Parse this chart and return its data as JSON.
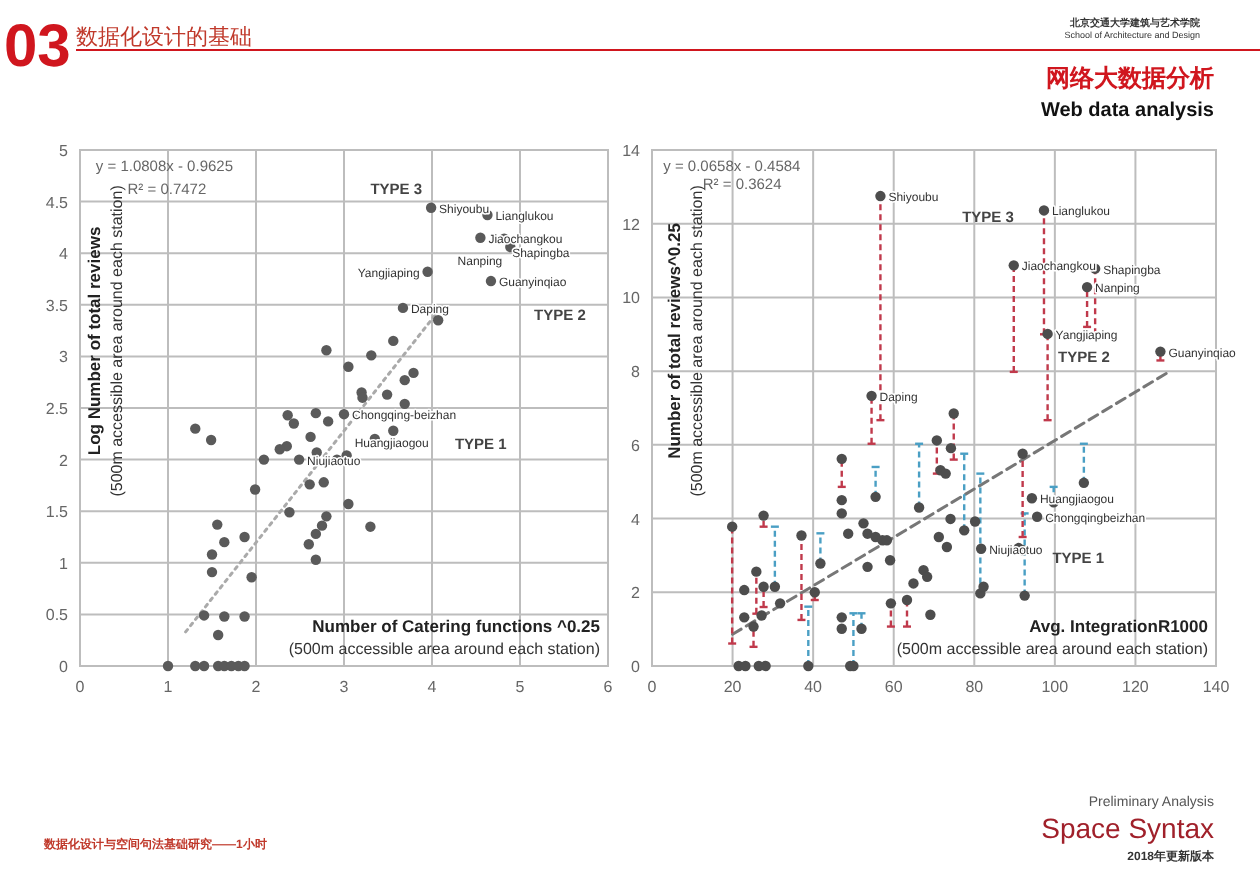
{
  "chart_data": [
    {
      "type": "scatter",
      "xlabel": "Number of Catering functions ^0.25\n(500m accessible area around each station)",
      "ylabel": "Log Number of total reviews\n(500m accessible area around each station)",
      "xlim": [
        0,
        6
      ],
      "ylim": [
        0,
        5
      ],
      "xticks": [
        0,
        1,
        2,
        3,
        4,
        5,
        6
      ],
      "yticks": [
        0,
        0.5,
        1,
        1.5,
        2,
        2.5,
        3,
        3.5,
        4,
        4.5,
        5
      ],
      "grid": true,
      "series": [
        {
          "marker": "circle",
          "color": "#5a5a5a",
          "x": [
            3.99,
            4.63,
            4.55,
            4.82,
            4.89,
            3.95,
            4.67,
            3.67,
            3.0,
            2.49,
            3.03,
            2.8,
            3.05,
            3.31,
            3.56,
            3.79,
            3.69,
            4.07,
            3.2,
            3.21,
            3.49,
            3.69,
            2.36,
            2.43,
            2.68,
            2.82,
            2.62,
            2.35,
            2.27,
            2.09,
            2.69,
            2.92,
            3.35,
            3.56,
            1.31,
            1.49,
            2.61,
            2.77,
            1.99,
            3.05,
            2.38,
            2.8,
            2.75,
            2.68,
            2.6,
            2.68,
            3.3,
            1.56,
            1.64,
            1.5,
            1.5,
            1.87,
            1.95,
            1.41,
            1.64,
            1.87,
            1.57,
            1.0,
            1.31,
            1.41,
            1.57,
            1.64,
            1.72,
            1.8,
            1.87
          ],
          "values": [
            4.44,
            4.37,
            4.15,
            4.14,
            4.06,
            3.82,
            3.73,
            3.47,
            2.44,
            2.0,
            2.04,
            3.06,
            2.9,
            3.01,
            3.15,
            2.84,
            2.77,
            3.35,
            2.65,
            2.6,
            2.63,
            2.54,
            2.43,
            2.35,
            2.45,
            2.37,
            2.22,
            2.13,
            2.1,
            2.0,
            2.07,
            2.0,
            2.2,
            2.28,
            2.3,
            2.19,
            1.76,
            1.78,
            1.71,
            1.57,
            1.49,
            1.45,
            1.36,
            1.28,
            1.18,
            1.03,
            1.35,
            1.37,
            1.2,
            1.08,
            0.91,
            1.25,
            0.86,
            0.49,
            0.48,
            0.48,
            0.3,
            0,
            0,
            0,
            0,
            0,
            0,
            0,
            0
          ]
        },
        {
          "type": "line",
          "line_style": "dotted",
          "color": "#aaaaaa",
          "x": [
            1.2,
            4.1
          ],
          "values": [
            0.33,
            3.47
          ]
        }
      ],
      "annotations": [
        "y = 1.0808x - 0.9625",
        "R² = 0.7472",
        "TYPE 3",
        "TYPE 2",
        "TYPE 1",
        {
          "text": "Shiyoubu",
          "x": 3.99,
          "y": 4.44
        },
        {
          "text": "Lianglukou",
          "x": 4.63,
          "y": 4.37
        },
        {
          "text": "Jiaochangkou",
          "x": 4.55,
          "y": 4.15
        },
        {
          "text": "Shapingba",
          "x": 4.82,
          "y": 4.14
        },
        {
          "text": "Nanping",
          "x": 4.89,
          "y": 4.06
        },
        {
          "text": "Yangjiaping",
          "x": 3.95,
          "y": 3.82
        },
        {
          "text": "Guanyinqiao",
          "x": 4.67,
          "y": 3.73
        },
        {
          "text": "Daping",
          "x": 3.67,
          "y": 3.47
        },
        {
          "text": "Chongqing-beizhan",
          "x": 3.0,
          "y": 2.44
        },
        {
          "text": "Niujiaotuo",
          "x": 2.49,
          "y": 2.0
        },
        {
          "text": "Huangjiaogou",
          "x": 3.03,
          "y": 2.04
        }
      ]
    },
    {
      "type": "scatter",
      "title": "网络大数据分析",
      "subtitle": "Web data analysis",
      "xlabel": "Avg. IntegrationR1000\n(500m accessible area around each station)",
      "ylabel": "Number of total reviews^0.25\n(500m accessible area around each station)",
      "xlim": [
        0,
        140
      ],
      "ylim": [
        0,
        14
      ],
      "xticks": [
        0,
        20,
        40,
        60,
        80,
        100,
        120,
        140
      ],
      "yticks": [
        0,
        2,
        4,
        6,
        8,
        10,
        12,
        14
      ],
      "grid": true,
      "series": [
        {
          "marker": "circle",
          "color": "#4d4d4d",
          "x": [
            19.9,
            22.9,
            22.9,
            21.5,
            23.2,
            25.2,
            25.9,
            27.7,
            27.7,
            27.2,
            28.2,
            26.5,
            30.5,
            31.8,
            37.1,
            38.8,
            40.4,
            41.8,
            47.1,
            47.1,
            47.1,
            48.7,
            47.1,
            47.1,
            49.2,
            50.0,
            52.0,
            52.5,
            53.5,
            53.5,
            55.5,
            55.5,
            57.2,
            58.3,
            59.1,
            59.3,
            63.3,
            64.9,
            66.3,
            67.4,
            68.3,
            69.1,
            70.7,
            71.6,
            71.2,
            72.9,
            73.2,
            74.2,
            74.1,
            74.9,
            77.5,
            80.2,
            81.5,
            82.3,
            81.7,
            91.0,
            92.1,
            92.5,
            92.0,
            94.3,
            95.6,
            99.7,
            107.2,
            54.5,
            56.7,
            97.3,
            89.8,
            110.0,
            108.0,
            98.2,
            126.2
          ],
          "values": [
            3.78,
            2.06,
            1.32,
            0,
            0,
            1.07,
            2.56,
            4.08,
            2.15,
            1.37,
            0,
            0,
            2.15,
            1.7,
            3.54,
            0,
            2.0,
            2.78,
            5.62,
            4.5,
            4.14,
            3.59,
            1.32,
            1.01,
            0,
            0,
            1.01,
            3.87,
            3.59,
            2.69,
            4.59,
            3.5,
            3.41,
            3.41,
            2.87,
            1.7,
            1.79,
            2.24,
            4.3,
            2.6,
            2.42,
            1.39,
            6.12,
            5.31,
            3.5,
            5.22,
            3.23,
            5.91,
            3.99,
            6.85,
            3.68,
            3.92,
            1.97,
            2.15,
            3.18,
            3.2,
            3.14,
            1.91,
            5.76,
            4.55,
            4.05,
            4.44,
            4.97,
            7.33,
            12.75,
            12.36,
            10.87,
            10.78,
            10.28,
            9.01,
            8.53
          ],
          "errors": [
            [
              0.61,
              3.78
            ],
            null,
            null,
            null,
            null,
            [
              0.52,
              1.07
            ],
            [
              1.42,
              2.56
            ],
            [
              3.78,
              4.08
            ],
            [
              1.6,
              2.15
            ],
            null,
            null,
            null,
            [
              2.15,
              3.78
            ],
            null,
            [
              1.25,
              3.54
            ],
            [
              0,
              1.61
            ],
            [
              1.79,
              2.0
            ],
            [
              2.78,
              3.6
            ],
            [
              4.86,
              5.62
            ],
            null,
            null,
            null,
            null,
            null,
            null,
            [
              0,
              1.43
            ],
            [
              1.01,
              1.43
            ],
            null,
            null,
            null,
            [
              4.59,
              5.4
            ],
            null,
            null,
            null,
            null,
            [
              1.07,
              1.7
            ],
            [
              1.07,
              1.79
            ],
            null,
            [
              4.3,
              6.03
            ],
            null,
            null,
            null,
            [
              5.22,
              6.12
            ],
            null,
            null,
            null,
            null,
            null,
            null,
            [
              5.6,
              6.85
            ],
            [
              3.68,
              5.76
            ],
            null,
            [
              1.97,
              5.22
            ],
            null,
            null,
            null,
            null,
            [
              1.91,
              4.14
            ],
            [
              3.5,
              5.76
            ],
            null,
            null,
            [
              4.44,
              4.86
            ],
            [
              4.97,
              6.03
            ],
            [
              6.03,
              7.33
            ],
            [
              6.67,
              12.75
            ],
            [
              9.0,
              12.36
            ],
            [
              7.98,
              10.87
            ],
            [
              9.0,
              10.78
            ],
            [
              9.2,
              10.28
            ],
            [
              6.67,
              9.01
            ],
            [
              8.29,
              8.53
            ]
          ]
        },
        {
          "type": "line",
          "line_style": "dashed",
          "color": "#777777",
          "x": [
            20,
            128
          ],
          "values": [
            0.86,
            7.96
          ]
        }
      ],
      "annotations": [
        "y = 0.0658x - 0.4584",
        "R² = 0.3624",
        "TYPE 3",
        "TYPE 2",
        "TYPE 1",
        {
          "text": "Shiyoubu",
          "x": 56.7,
          "y": 12.75
        },
        {
          "text": "Lianglukou",
          "x": 97.3,
          "y": 12.36
        },
        {
          "text": "Jiaochangkou",
          "x": 89.8,
          "y": 10.87
        },
        {
          "text": "Shapingba",
          "x": 110.0,
          "y": 10.78
        },
        {
          "text": "Nanping",
          "x": 108.0,
          "y": 10.28
        },
        {
          "text": "Yangjiaping",
          "x": 98.2,
          "y": 9.01
        },
        {
          "text": "Guanyinqiao",
          "x": 126.2,
          "y": 8.53
        },
        {
          "text": "Daping",
          "x": 54.5,
          "y": 7.33
        },
        {
          "text": "Huangjiaogou",
          "x": 94.3,
          "y": 4.55
        },
        {
          "text": "Chongqingbeizhan",
          "x": 95.6,
          "y": 4.05
        },
        {
          "text": "Niujiaotuo",
          "x": 81.7,
          "y": 3.18
        }
      ]
    },
    {
      "type": "other",
      "annotations": [
        "03",
        "数据化设计的基础",
        "北京交通大学建筑与艺术学院",
        "School of Architecture and Design",
        "数据化设计与空间句法基础研究——1小时",
        "Preliminary Analysis",
        "Space Syntax",
        "2018年更新版本"
      ]
    }
  ]
}
